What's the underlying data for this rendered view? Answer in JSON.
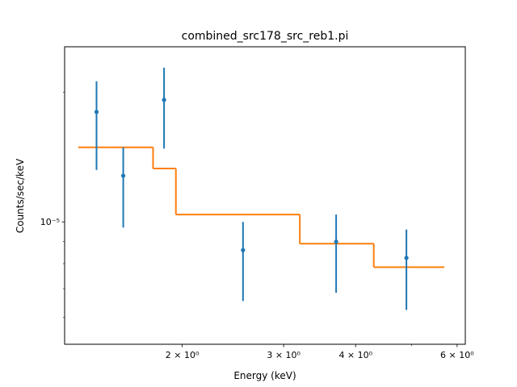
{
  "chart_data": {
    "type": "scatter",
    "title": "combined_src178_src_reb1.pi",
    "xlabel": "Energy (keV)",
    "ylabel": "Counts/sec/keV",
    "xscale": "log",
    "yscale": "log",
    "xlim": [
      1.25,
      6.2
    ],
    "ylim": [
      5.2e-06,
      2.55e-05
    ],
    "grid": false,
    "legend": "none",
    "x_tick_labels": [
      {
        "value": 2,
        "label": "2 × 10⁰"
      },
      {
        "value": 3,
        "label": "3 × 10⁰"
      },
      {
        "value": 4,
        "label": "4 × 10⁰"
      },
      {
        "value": 6,
        "label": "6 × 10⁰"
      }
    ],
    "y_tick_labels": [
      {
        "value": 1e-05,
        "label": "10⁻⁵"
      }
    ],
    "series": [
      {
        "kind": "data_points",
        "color": "#1f77b4",
        "points": [
          {
            "x": 1.42,
            "y": 1.8e-05,
            "ylo": 1.32e-05,
            "yhi": 2.12e-05
          },
          {
            "x": 1.58,
            "y": 1.28e-05,
            "ylo": 9.7e-06,
            "yhi": 1.49e-05
          },
          {
            "x": 1.86,
            "y": 1.92e-05,
            "ylo": 1.48e-05,
            "yhi": 2.28e-05
          },
          {
            "x": 2.55,
            "y": 8.6e-06,
            "ylo": 6.55e-06,
            "yhi": 1e-05
          },
          {
            "x": 3.7,
            "y": 9e-06,
            "ylo": 6.85e-06,
            "yhi": 1.04e-05
          },
          {
            "x": 4.9,
            "y": 8.25e-06,
            "ylo": 6.25e-06,
            "yhi": 9.6e-06
          }
        ]
      },
      {
        "kind": "model_step",
        "color": "#ff7f0e",
        "steps": [
          {
            "x0": 1.32,
            "x1": 1.47,
            "y": 1.49e-05
          },
          {
            "x0": 1.47,
            "x1": 1.78,
            "y": 1.49e-05
          },
          {
            "x0": 1.78,
            "x1": 1.95,
            "y": 1.33e-05
          },
          {
            "x0": 1.95,
            "x1": 3.2,
            "y": 1.04e-05
          },
          {
            "x0": 3.2,
            "x1": 4.3,
            "y": 8.9e-06
          },
          {
            "x0": 4.3,
            "x1": 5.7,
            "y": 7.85e-06
          }
        ]
      }
    ]
  }
}
